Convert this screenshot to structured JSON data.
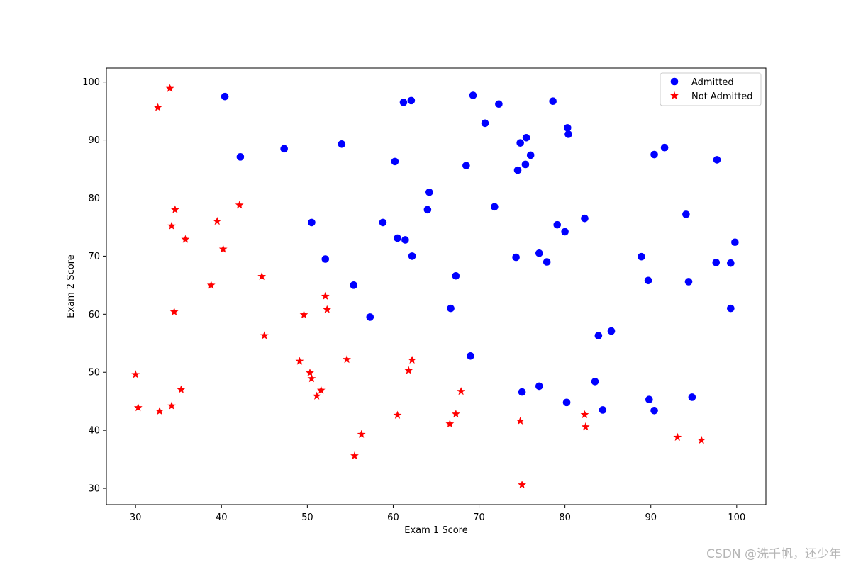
{
  "chart_data": {
    "type": "scatter",
    "title": "",
    "xlabel": "Exam 1 Score",
    "ylabel": "Exam 2 Score",
    "xlim": [
      26.6,
      103.4
    ],
    "ylim": [
      27.2,
      102.4
    ],
    "xticks": [
      30,
      40,
      50,
      60,
      70,
      80,
      90,
      100
    ],
    "yticks": [
      30,
      40,
      50,
      60,
      70,
      80,
      90,
      100
    ],
    "grid": false,
    "legend_position": "top-right",
    "series": [
      {
        "name": "Admitted",
        "marker": "circle",
        "color": "#0000ff",
        "points": [
          [
            40.4,
            97.5
          ],
          [
            42.2,
            87.1
          ],
          [
            47.3,
            88.5
          ],
          [
            54.0,
            89.3
          ],
          [
            60.2,
            86.3
          ],
          [
            61.2,
            96.5
          ],
          [
            62.1,
            96.8
          ],
          [
            69.3,
            97.7
          ],
          [
            72.3,
            96.2
          ],
          [
            70.7,
            92.9
          ],
          [
            78.6,
            96.7
          ],
          [
            80.3,
            92.1
          ],
          [
            80.4,
            91.0
          ],
          [
            75.5,
            90.4
          ],
          [
            74.8,
            89.5
          ],
          [
            76.0,
            87.4
          ],
          [
            75.4,
            85.8
          ],
          [
            74.5,
            84.8
          ],
          [
            68.5,
            85.6
          ],
          [
            64.2,
            81.0
          ],
          [
            64.0,
            78.0
          ],
          [
            71.8,
            78.5
          ],
          [
            50.5,
            75.8
          ],
          [
            58.8,
            75.8
          ],
          [
            60.5,
            73.1
          ],
          [
            61.4,
            72.8
          ],
          [
            62.2,
            70.0
          ],
          [
            52.1,
            69.5
          ],
          [
            67.3,
            66.6
          ],
          [
            55.4,
            65.0
          ],
          [
            57.3,
            59.5
          ],
          [
            66.7,
            61.0
          ],
          [
            69.0,
            52.8
          ],
          [
            74.3,
            69.8
          ],
          [
            77.0,
            70.5
          ],
          [
            77.9,
            69.0
          ],
          [
            79.1,
            75.4
          ],
          [
            80.0,
            74.2
          ],
          [
            82.3,
            76.5
          ],
          [
            83.9,
            56.3
          ],
          [
            85.4,
            57.1
          ],
          [
            88.9,
            69.9
          ],
          [
            89.7,
            65.8
          ],
          [
            90.4,
            87.5
          ],
          [
            91.6,
            88.7
          ],
          [
            94.1,
            77.2
          ],
          [
            94.4,
            65.6
          ],
          [
            97.7,
            86.6
          ],
          [
            97.6,
            68.9
          ],
          [
            99.3,
            68.8
          ],
          [
            99.8,
            72.4
          ],
          [
            99.3,
            61.0
          ],
          [
            75.0,
            46.6
          ],
          [
            77.0,
            47.6
          ],
          [
            80.2,
            44.8
          ],
          [
            83.5,
            48.4
          ],
          [
            84.4,
            43.5
          ],
          [
            89.8,
            45.3
          ],
          [
            90.4,
            43.4
          ],
          [
            94.8,
            45.7
          ]
        ]
      },
      {
        "name": "Not Admitted",
        "marker": "star",
        "color": "#ff0000",
        "points": [
          [
            34.0,
            98.9
          ],
          [
            32.6,
            95.6
          ],
          [
            34.6,
            78.0
          ],
          [
            34.2,
            75.2
          ],
          [
            35.8,
            72.9
          ],
          [
            39.5,
            76.0
          ],
          [
            42.1,
            78.8
          ],
          [
            40.2,
            71.2
          ],
          [
            38.8,
            65.0
          ],
          [
            34.5,
            60.4
          ],
          [
            44.7,
            66.5
          ],
          [
            45.0,
            56.3
          ],
          [
            49.6,
            59.9
          ],
          [
            52.1,
            63.1
          ],
          [
            52.3,
            60.8
          ],
          [
            30.0,
            49.6
          ],
          [
            30.3,
            43.9
          ],
          [
            32.8,
            43.3
          ],
          [
            34.2,
            44.2
          ],
          [
            35.3,
            47.0
          ],
          [
            49.1,
            51.9
          ],
          [
            50.3,
            49.9
          ],
          [
            50.5,
            48.9
          ],
          [
            51.1,
            45.9
          ],
          [
            51.6,
            46.9
          ],
          [
            54.6,
            52.2
          ],
          [
            56.3,
            39.3
          ],
          [
            55.5,
            35.6
          ],
          [
            60.5,
            42.6
          ],
          [
            61.8,
            50.3
          ],
          [
            62.2,
            52.1
          ],
          [
            66.6,
            41.1
          ],
          [
            67.3,
            42.8
          ],
          [
            67.9,
            46.7
          ],
          [
            74.8,
            41.6
          ],
          [
            75.0,
            30.6
          ],
          [
            82.3,
            42.7
          ],
          [
            82.4,
            40.6
          ],
          [
            93.1,
            38.8
          ],
          [
            95.9,
            38.3
          ]
        ]
      }
    ]
  },
  "watermark": "CSDN @洗千帆，还少年"
}
